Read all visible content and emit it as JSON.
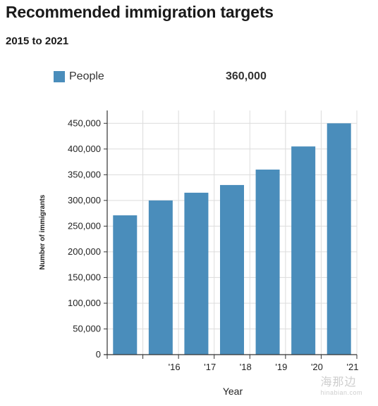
{
  "chart_data": {
    "type": "bar",
    "title": "Recommended immigration targets",
    "subtitle": "2015 to 2021",
    "xlabel": "Year",
    "ylabel": "Number of immigrants",
    "categories": [
      "",
      "'16",
      "'17",
      "'18",
      "'19",
      "'20",
      "'21"
    ],
    "series": [
      {
        "name": "People",
        "values": [
          271000,
          300000,
          315000,
          330000,
          360000,
          405000,
          450000
        ]
      }
    ],
    "yticks": [
      "0",
      "50,000",
      "100,000",
      "150,000",
      "200,000",
      "250,000",
      "300,000",
      "350,000",
      "400,000",
      "450,000"
    ],
    "ylim": [
      0,
      475000
    ],
    "grid": true,
    "legend": {
      "placement": "top-left",
      "label": "People",
      "value": "360,000"
    },
    "colors": {
      "bar": "#4a8dbb",
      "grid": "#dcdcdc",
      "axis": "#333333"
    }
  },
  "watermark": {
    "main": "海那边",
    "sub": "hinabian.com"
  }
}
